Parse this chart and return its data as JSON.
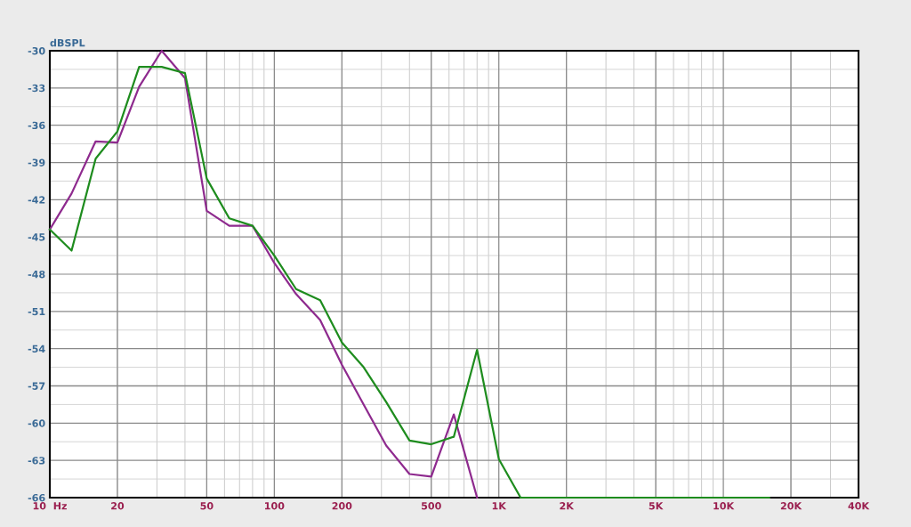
{
  "chart_data": {
    "type": "line",
    "ylabel": "dBSPL",
    "x": [
      10,
      12.5,
      16,
      20,
      25,
      31.5,
      40,
      50,
      63,
      80,
      100,
      125,
      160,
      200,
      250,
      315,
      400,
      500,
      630,
      800,
      1000,
      1250,
      16000
    ],
    "series": [
      {
        "color": "#8e2a8e",
        "values": [
          -44.4,
          -41.5,
          -37.3,
          -37.4,
          -32.9,
          -30.0,
          -32.2,
          -42.9,
          -44.1,
          -44.1,
          -47.1,
          -49.6,
          -51.7,
          -55.3,
          -58.5,
          -61.8,
          -64.1,
          -64.3,
          -59.3,
          -66,
          null,
          null,
          null
        ]
      },
      {
        "color": "#1e8c1e",
        "values": [
          -44.4,
          -46.1,
          -38.7,
          -36.5,
          -31.3,
          -31.3,
          -31.8,
          -40.3,
          -43.5,
          -44.1,
          -46.5,
          -49.2,
          -50.1,
          -53.5,
          -55.5,
          -58.3,
          -61.4,
          -61.7,
          -61.1,
          -54.1,
          -62.9,
          -66,
          -66
        ]
      }
    ],
    "log": "x",
    "xlim": [
      10,
      40000
    ],
    "xticks": [
      {
        "value": 10,
        "label": "10  Hz"
      },
      20,
      50,
      100,
      200,
      500,
      {
        "value": 1000,
        "label": "1K"
      },
      {
        "value": 2000,
        "label": "2K"
      },
      {
        "value": 5000,
        "label": "5K"
      },
      {
        "value": 10000,
        "label": "10K"
      },
      {
        "value": 20000,
        "label": "20K"
      },
      {
        "value": 40000,
        "label": "40K"
      }
    ],
    "ylim": [
      -66,
      -30
    ],
    "yticks": [
      -30,
      -33,
      -36,
      -39,
      -42,
      -45,
      -48,
      -51,
      -54,
      -57,
      -60,
      -63,
      -66
    ],
    "grid": true,
    "line_style": "solid",
    "marker": "none"
  }
}
